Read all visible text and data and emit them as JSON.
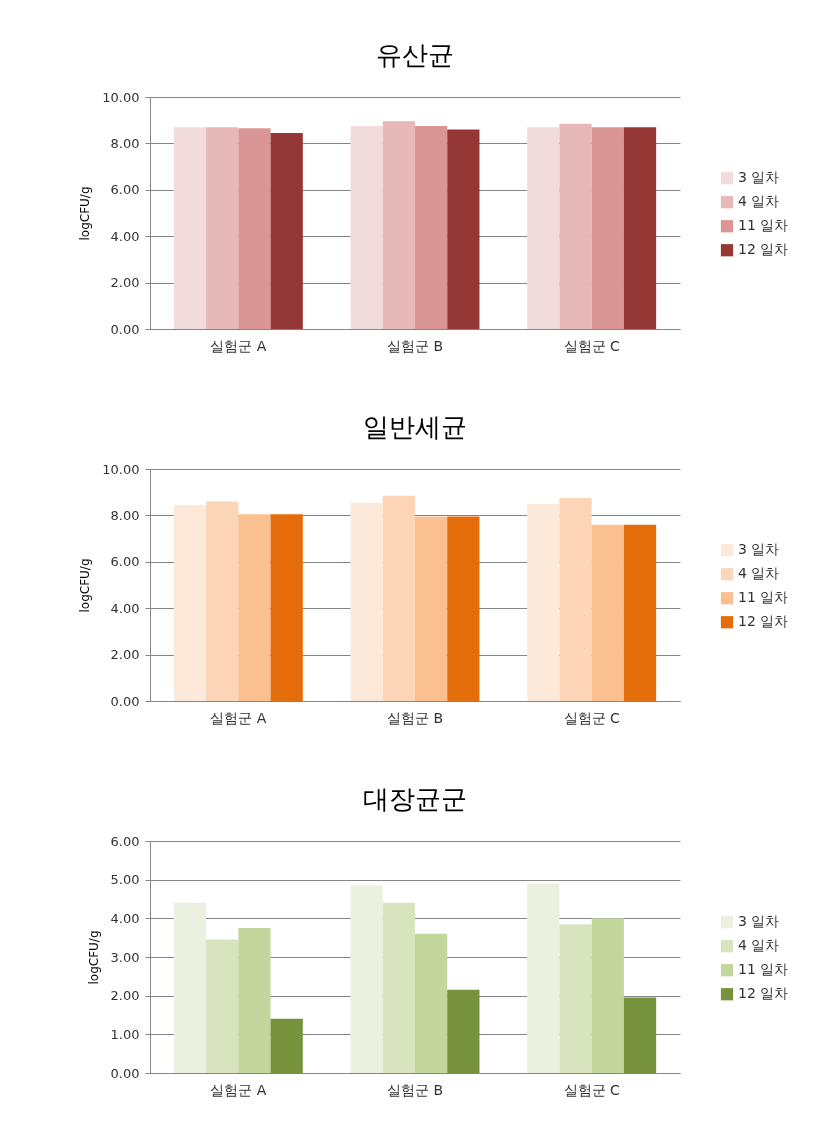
{
  "chart_data": [
    {
      "type": "bar",
      "title": "유산균",
      "ylabel": "logCFU/g",
      "categories": [
        "실험군 A",
        "실험군 B",
        "실험군 C"
      ],
      "series": [
        {
          "name": "3 일차",
          "color": "#f2dcdb",
          "values": [
            8.7,
            8.75,
            8.7
          ]
        },
        {
          "name": "4 일차",
          "color": "#e6b9b8",
          "values": [
            8.7,
            8.95,
            8.85
          ]
        },
        {
          "name": "11 일차",
          "color": "#d99694",
          "values": [
            8.65,
            8.75,
            8.7
          ]
        },
        {
          "name": "12 일차",
          "color": "#953735",
          "values": [
            8.45,
            8.6,
            8.7
          ]
        }
      ],
      "ylim": [
        0,
        10
      ],
      "yticks": [
        {
          "value": 0,
          "label": "0.00"
        },
        {
          "value": 2,
          "label": "2.00"
        },
        {
          "value": 4,
          "label": "4.00"
        },
        {
          "value": 6,
          "label": "6.00"
        },
        {
          "value": 8,
          "label": "8.00"
        },
        {
          "value": 10,
          "label": "10.00"
        }
      ],
      "grid": "y",
      "legend": "right"
    },
    {
      "type": "bar",
      "title": "일반세균",
      "ylabel": "logCFU/g",
      "categories": [
        "실험군 A",
        "실험군 B",
        "실험군 C"
      ],
      "series": [
        {
          "name": "3 일차",
          "color": "#fde9d9",
          "values": [
            8.45,
            8.55,
            8.5
          ]
        },
        {
          "name": "4 일차",
          "color": "#fbd5b5",
          "values": [
            8.6,
            8.85,
            8.75
          ]
        },
        {
          "name": "11 일차",
          "color": "#fac090",
          "values": [
            8.05,
            7.95,
            7.6
          ]
        },
        {
          "name": "12 일차",
          "color": "#e46c0a",
          "values": [
            8.05,
            7.95,
            7.6
          ]
        }
      ],
      "ylim": [
        0,
        10
      ],
      "yticks": [
        {
          "value": 0,
          "label": "0.00"
        },
        {
          "value": 2,
          "label": "2.00"
        },
        {
          "value": 4,
          "label": "4.00"
        },
        {
          "value": 6,
          "label": "6.00"
        },
        {
          "value": 8,
          "label": "8.00"
        },
        {
          "value": 10,
          "label": "10.00"
        }
      ],
      "grid": "y",
      "legend": "right"
    },
    {
      "type": "bar",
      "title": "대장균군",
      "ylabel": "logCFU/g",
      "categories": [
        "실험군 A",
        "실험군 B",
        "실험군 C"
      ],
      "series": [
        {
          "name": "3 일차",
          "color": "#ebf1de",
          "values": [
            4.4,
            4.85,
            4.9
          ]
        },
        {
          "name": "4 일차",
          "color": "#d7e4bd",
          "values": [
            3.45,
            4.4,
            3.85
          ]
        },
        {
          "name": "11 일차",
          "color": "#c3d69b",
          "values": [
            3.75,
            3.6,
            4.0
          ]
        },
        {
          "name": "12 일차",
          "color": "#76923c",
          "values": [
            1.4,
            2.15,
            1.95
          ]
        }
      ],
      "ylim": [
        0,
        6
      ],
      "yticks": [
        {
          "value": 0,
          "label": "0.00"
        },
        {
          "value": 1,
          "label": "1.00"
        },
        {
          "value": 2,
          "label": "2.00"
        },
        {
          "value": 3,
          "label": "3.00"
        },
        {
          "value": 4,
          "label": "4.00"
        },
        {
          "value": 5,
          "label": "5.00"
        },
        {
          "value": 6,
          "label": "6.00"
        }
      ],
      "grid": "y",
      "legend": "right"
    }
  ]
}
